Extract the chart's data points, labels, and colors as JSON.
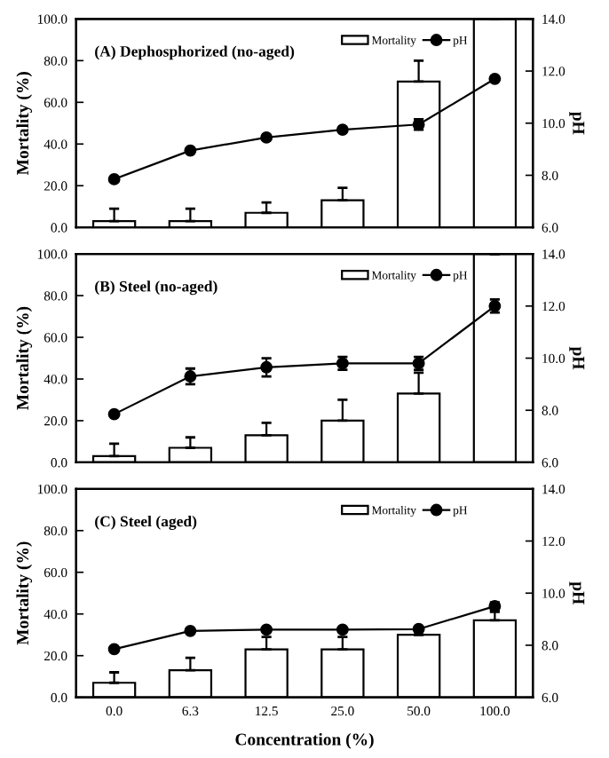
{
  "chart_data": [
    {
      "type": "bar",
      "title": "(A) Dephosphorized (no-aged)",
      "ylabel": "Mortality (%)",
      "y2label": "pH",
      "categories": [
        "0.0",
        "6.3",
        "12.5",
        "25.0",
        "50.0",
        "100.0"
      ],
      "tick_labels": "y",
      "legend": "top right",
      "grid": false,
      "series": [
        {
          "name": "Mortality",
          "color": "#ffffff",
          "values": [
            3,
            3,
            7,
            13,
            70,
            100
          ],
          "errors": [
            [
              3,
              9
            ],
            [
              3,
              9
            ],
            [
              7,
              12
            ],
            [
              13,
              19
            ],
            [
              70,
              80
            ],
            null
          ]
        },
        {
          "name": "pH",
          "type": "line",
          "axis": "y2",
          "color": "#000000",
          "marker": "circle",
          "line_style": "solid",
          "values": [
            7.85,
            8.95,
            9.45,
            9.75,
            9.95,
            11.7
          ],
          "errors": [
            null,
            null,
            null,
            null,
            0.2,
            null
          ]
        }
      ],
      "ylim": [
        0,
        100
      ],
      "yticks": [
        {
          "value": 0,
          "label": "0.0"
        },
        {
          "value": 20,
          "label": "20.0"
        },
        {
          "value": 40,
          "label": "40.0"
        },
        {
          "value": 60,
          "label": "60.0"
        },
        {
          "value": 80,
          "label": "80.0"
        },
        {
          "value": 100,
          "label": "100.0"
        }
      ],
      "y2lim": [
        6,
        14
      ],
      "y2ticks": [
        {
          "value": 6,
          "label": "6.0"
        },
        {
          "value": 8,
          "label": "8.0"
        },
        {
          "value": 10,
          "label": "10.0"
        },
        {
          "value": 12,
          "label": "12.0"
        },
        {
          "value": 14,
          "label": "14.0"
        }
      ]
    },
    {
      "type": "bar",
      "title": "(B) Steel (no-aged)",
      "ylabel": "Mortality (%)",
      "y2label": "pH",
      "categories": [
        "0.0",
        "6.3",
        "12.5",
        "25.0",
        "50.0",
        "100.0"
      ],
      "tick_labels": "y",
      "legend": "top right",
      "grid": false,
      "series": [
        {
          "name": "Mortality",
          "color": "#ffffff",
          "values": [
            3,
            7,
            13,
            20,
            33,
            100
          ],
          "errors": [
            [
              3,
              9
            ],
            [
              7,
              12
            ],
            [
              13,
              19
            ],
            [
              20,
              30
            ],
            [
              33,
              43
            ],
            null
          ]
        },
        {
          "name": "pH",
          "type": "line",
          "axis": "y2",
          "color": "#000000",
          "marker": "circle",
          "line_style": "solid",
          "values": [
            7.85,
            9.3,
            9.65,
            9.8,
            9.8,
            12.0
          ],
          "errors": [
            null,
            0.3,
            0.35,
            0.25,
            0.25,
            0.25
          ]
        }
      ],
      "ylim": [
        0,
        100
      ],
      "yticks": [
        {
          "value": 0,
          "label": "0.0"
        },
        {
          "value": 20,
          "label": "20.0"
        },
        {
          "value": 40,
          "label": "40.0"
        },
        {
          "value": 60,
          "label": "60.0"
        },
        {
          "value": 80,
          "label": "80.0"
        },
        {
          "value": 100,
          "label": "100.0"
        }
      ],
      "y2lim": [
        6,
        14
      ],
      "y2ticks": [
        {
          "value": 6,
          "label": "6.0"
        },
        {
          "value": 8,
          "label": "8.0"
        },
        {
          "value": 10,
          "label": "10.0"
        },
        {
          "value": 12,
          "label": "12.0"
        },
        {
          "value": 14,
          "label": "14.0"
        }
      ]
    },
    {
      "type": "bar",
      "title": "(C) Steel (aged)",
      "ylabel": "Mortality (%)",
      "y2label": "pH",
      "xlabel": "Concentration (%)",
      "categories": [
        "0.0",
        "6.3",
        "12.5",
        "25.0",
        "50.0",
        "100.0"
      ],
      "legend": "top right",
      "grid": false,
      "series": [
        {
          "name": "Mortality",
          "color": "#ffffff",
          "values": [
            7,
            13,
            23,
            23,
            30,
            37
          ],
          "errors": [
            [
              7,
              12
            ],
            [
              13,
              19
            ],
            [
              23,
              29
            ],
            [
              23,
              29
            ],
            null,
            [
              37,
              41
            ]
          ]
        },
        {
          "name": "pH",
          "type": "line",
          "axis": "y2",
          "color": "#000000",
          "marker": "circle",
          "line_style": "solid",
          "values": [
            7.85,
            8.55,
            8.6,
            8.6,
            8.62,
            9.5
          ],
          "errors": [
            null,
            null,
            null,
            null,
            null,
            0.15
          ]
        }
      ],
      "ylim": [
        0,
        100
      ],
      "yticks": [
        {
          "value": 0,
          "label": "0.0"
        },
        {
          "value": 20,
          "label": "20.0"
        },
        {
          "value": 40,
          "label": "40.0"
        },
        {
          "value": 60,
          "label": "60.0"
        },
        {
          "value": 80,
          "label": "80.0"
        },
        {
          "value": 100,
          "label": "100.0"
        }
      ],
      "y2lim": [
        6,
        14
      ],
      "y2ticks": [
        {
          "value": 6,
          "label": "6.0"
        },
        {
          "value": 8,
          "label": "8.0"
        },
        {
          "value": 10,
          "label": "10.0"
        },
        {
          "value": 12,
          "label": "12.0"
        },
        {
          "value": 14,
          "label": "14.0"
        }
      ]
    }
  ]
}
